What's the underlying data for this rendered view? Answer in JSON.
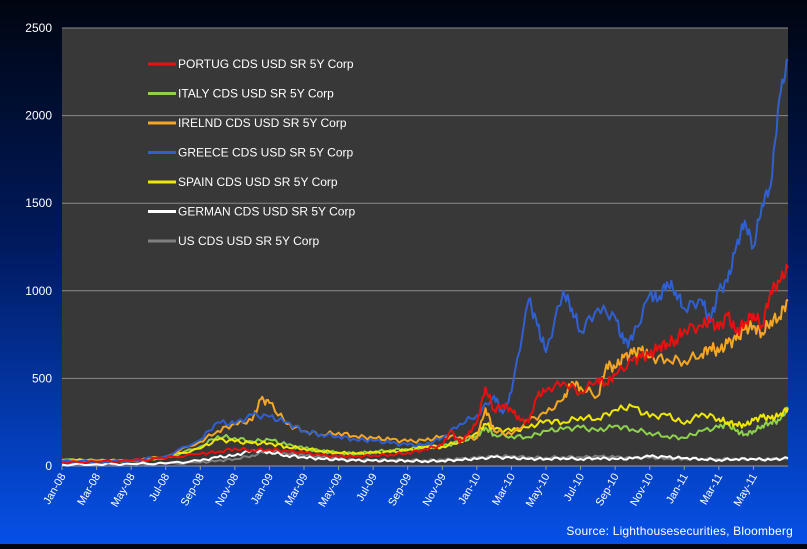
{
  "chart_data": {
    "type": "line",
    "title": "",
    "xlabel": "",
    "ylabel": "",
    "ylim": [
      0,
      2500
    ],
    "yticks": [
      0,
      500,
      1000,
      1500,
      2000,
      2500
    ],
    "xticks": [
      "Jan-08",
      "Mar-08",
      "May-08",
      "Jul-08",
      "Sep-08",
      "Nov-08",
      "Jan-09",
      "Mar-09",
      "May-09",
      "Jul-09",
      "Sep-09",
      "Nov-09",
      "Jan-10",
      "Mar-10",
      "May-10",
      "Jul-10",
      "Sep-10",
      "Nov-10",
      "Jan-11",
      "Mar-11",
      "May-11"
    ],
    "grid": true,
    "legend": "top-left",
    "x_axis_note": "x values are month offsets from Jan-08",
    "series": [
      {
        "name": "PORTUG CDS USD SR 5Y Corp",
        "color": "#e81010",
        "x": [
          0,
          2,
          4,
          6,
          8,
          9,
          10,
          11,
          12,
          13,
          14,
          15,
          16,
          17,
          18,
          19,
          20,
          21,
          22,
          22.5,
          23,
          23.5,
          24,
          24.5,
          25,
          25.5,
          26,
          26.5,
          27,
          27.5,
          28,
          29,
          30,
          31,
          31.5,
          32,
          33,
          33.5,
          34,
          34.5,
          35,
          35.5,
          36,
          37,
          37.5,
          38,
          38.5,
          39,
          39.5,
          40,
          40.5,
          41,
          41.5,
          42
        ],
        "y": [
          20,
          25,
          30,
          45,
          70,
          80,
          100,
          90,
          95,
          85,
          75,
          60,
          55,
          55,
          60,
          65,
          75,
          95,
          120,
          200,
          130,
          180,
          250,
          450,
          320,
          350,
          320,
          260,
          250,
          400,
          430,
          480,
          420,
          500,
          470,
          520,
          600,
          620,
          630,
          680,
          700,
          720,
          780,
          800,
          830,
          780,
          860,
          760,
          820,
          870,
          800,
          1000,
          1050,
          1130
        ]
      },
      {
        "name": "ITALY CDS USD SR 5Y Corp",
        "color": "#8dd24a",
        "x": [
          0,
          2,
          4,
          6,
          8,
          9,
          10,
          11,
          12,
          13,
          14,
          15,
          16,
          17,
          18,
          19,
          20,
          21,
          22,
          23,
          24,
          24.5,
          25,
          26,
          27,
          28,
          29,
          30,
          31,
          32,
          33,
          34,
          35,
          36,
          37,
          38,
          38.5,
          39,
          39.5,
          40,
          40.5,
          41,
          41.5,
          42
        ],
        "y": [
          35,
          30,
          30,
          45,
          110,
          170,
          160,
          140,
          150,
          120,
          100,
          85,
          75,
          70,
          80,
          90,
          95,
          110,
          110,
          140,
          170,
          220,
          180,
          170,
          165,
          200,
          210,
          220,
          200,
          230,
          210,
          190,
          170,
          160,
          200,
          220,
          240,
          200,
          180,
          200,
          230,
          250,
          260,
          330
        ]
      },
      {
        "name": "IRELND CDS USD SR 5Y Corp",
        "color": "#f5a623",
        "x": [
          0,
          2,
          4,
          6,
          8,
          9,
          10,
          11,
          11.5,
          12,
          13,
          14,
          15,
          16,
          17,
          18,
          19,
          20,
          21,
          22,
          23,
          24,
          24.5,
          25,
          26,
          27,
          28,
          29,
          29.5,
          30,
          31,
          31.5,
          32,
          32.5,
          33,
          33.5,
          34,
          35,
          36,
          37,
          37.5,
          38,
          38.5,
          39,
          39.5,
          40,
          40.5,
          41,
          41.5,
          42
        ],
        "y": [
          30,
          25,
          30,
          55,
          140,
          200,
          240,
          260,
          380,
          360,
          240,
          200,
          180,
          190,
          170,
          160,
          150,
          140,
          145,
          170,
          165,
          160,
          330,
          200,
          180,
          260,
          300,
          380,
          480,
          450,
          400,
          580,
          560,
          620,
          640,
          660,
          620,
          610,
          600,
          640,
          680,
          650,
          700,
          720,
          780,
          800,
          760,
          830,
          850,
          950
        ]
      },
      {
        "name": "GREECE CDS USD SR 5Y Corp",
        "color": "#3060d0",
        "x": [
          0,
          2,
          4,
          6,
          8,
          9,
          10,
          11,
          12,
          13,
          14,
          15,
          16,
          17,
          18,
          19,
          20,
          21,
          22,
          23,
          24,
          25,
          25.5,
          26,
          27,
          27.5,
          28,
          29,
          29.5,
          30,
          31,
          32,
          32.5,
          33,
          34,
          34.5,
          35,
          35.5,
          36,
          37,
          37.5,
          38,
          38.5,
          39,
          39.5,
          40,
          40.5,
          41,
          41.5,
          42
        ],
        "y": [
          30,
          25,
          30,
          55,
          150,
          250,
          240,
          290,
          280,
          250,
          200,
          180,
          170,
          150,
          145,
          130,
          120,
          120,
          160,
          240,
          290,
          400,
          300,
          420,
          950,
          800,
          650,
          1000,
          900,
          770,
          900,
          850,
          700,
          720,
          980,
          950,
          1050,
          1000,
          900,
          950,
          820,
          1000,
          1050,
          1250,
          1400,
          1250,
          1500,
          1600,
          2100,
          2320
        ]
      },
      {
        "name": "SPAIN CDS USD SR 5Y Corp",
        "color": "#f0e800",
        "x": [
          0,
          2,
          4,
          6,
          8,
          9,
          10,
          11,
          12,
          13,
          14,
          15,
          16,
          17,
          18,
          19,
          20,
          21,
          22,
          23,
          24,
          24.5,
          25,
          26,
          27,
          28,
          29,
          30,
          31,
          32,
          33,
          34,
          35,
          36,
          37,
          38,
          38.5,
          39,
          39.5,
          40,
          40.5,
          41,
          41.5,
          42
        ],
        "y": [
          35,
          30,
          30,
          50,
          100,
          150,
          140,
          130,
          130,
          110,
          100,
          85,
          75,
          70,
          75,
          80,
          90,
          110,
          110,
          140,
          190,
          240,
          210,
          200,
          220,
          260,
          250,
          280,
          270,
          320,
          340,
          280,
          290,
          240,
          300,
          270,
          250,
          240,
          230,
          260,
          280,
          270,
          290,
          330
        ]
      },
      {
        "name": "GERMAN CDS USD SR 5Y Corp",
        "color": "#ffffff",
        "x": [
          0,
          2,
          4,
          6,
          8,
          9,
          10,
          11,
          12,
          13,
          14,
          15,
          16,
          17,
          18,
          19,
          20,
          21,
          22,
          23,
          24,
          25,
          26,
          27,
          28,
          29,
          30,
          31,
          32,
          33,
          34,
          35,
          36,
          37,
          38,
          39,
          40,
          41,
          42
        ],
        "y": [
          8,
          10,
          12,
          15,
          30,
          50,
          60,
          90,
          80,
          60,
          50,
          40,
          35,
          30,
          30,
          30,
          30,
          28,
          30,
          35,
          40,
          50,
          45,
          40,
          40,
          45,
          40,
          45,
          40,
          42,
          55,
          50,
          45,
          40,
          35,
          40,
          40,
          35,
          45
        ]
      },
      {
        "name": "US CDS USD SR 5Y Corp",
        "color": "#808080",
        "x": [
          0,
          2,
          4,
          6,
          8,
          9,
          10,
          11,
          12,
          13,
          14,
          15,
          16,
          17,
          18,
          19,
          20,
          21,
          22,
          23,
          24,
          25,
          26,
          27,
          28,
          29,
          30,
          31,
          32,
          33,
          34,
          35,
          36,
          37,
          38,
          39,
          40,
          41,
          42
        ],
        "y": [
          8,
          10,
          10,
          12,
          20,
          30,
          40,
          60,
          90,
          70,
          60,
          50,
          40,
          35,
          35,
          35,
          35,
          32,
          35,
          40,
          45,
          55,
          55,
          50,
          48,
          52,
          50,
          55,
          50,
          45,
          48,
          42,
          42,
          42,
          40,
          40,
          38,
          38,
          40
        ]
      }
    ]
  },
  "source_label": "Source: Lighthousesecurities, Bloomberg"
}
